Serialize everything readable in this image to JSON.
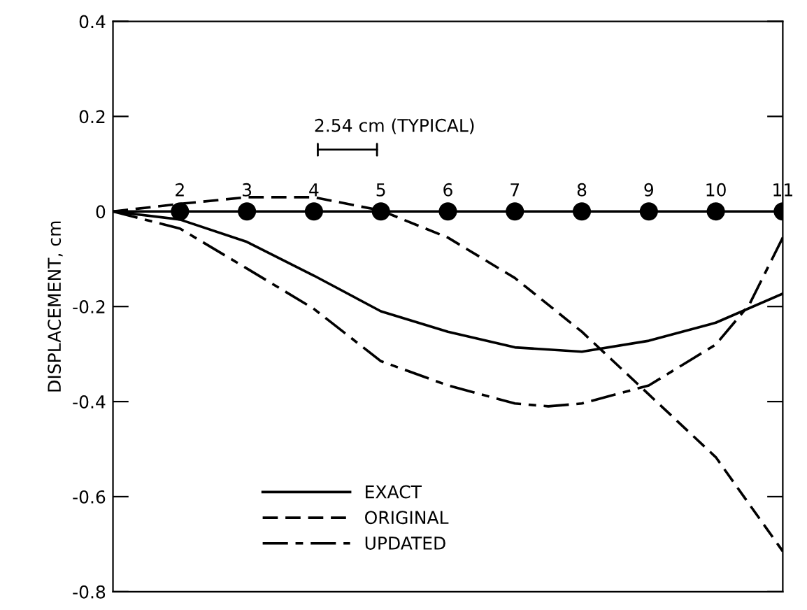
{
  "chart_data": {
    "type": "line",
    "ylabel": "DISPLACEMENT, cm",
    "xlim": [
      1,
      11
    ],
    "ylim": [
      -0.8,
      0.4
    ],
    "xticks": [
      2,
      3,
      4,
      5,
      6,
      7,
      8,
      9,
      10,
      11
    ],
    "yticks": [
      {
        "value": 0.4,
        "label": "0.4"
      },
      {
        "value": 0.2,
        "label": "0.2"
      },
      {
        "value": 0,
        "label": "0"
      },
      {
        "value": -0.2,
        "label": "-0.2"
      },
      {
        "value": -0.4,
        "label": "-0.4"
      },
      {
        "value": -0.6,
        "label": "-0.6"
      },
      {
        "value": -0.8,
        "label": "-0.8"
      }
    ],
    "grid": false,
    "legend": "bottom left",
    "series": [
      {
        "name": "EXACT",
        "line_style": "solid",
        "color": "#000000",
        "x": [
          1,
          2,
          3,
          4,
          5,
          6,
          7,
          8,
          9,
          10,
          11
        ],
        "values": [
          0,
          -0.017,
          -0.064,
          -0.135,
          -0.21,
          -0.253,
          -0.286,
          -0.295,
          -0.272,
          -0.234,
          -0.173
        ]
      },
      {
        "name": "ORIGINAL",
        "line_style": "dashed",
        "color": "#000000",
        "x": [
          1,
          2,
          3,
          4,
          5,
          6,
          7,
          8,
          9,
          10,
          11
        ],
        "values": [
          0,
          0.016,
          0.03,
          0.03,
          0.002,
          -0.055,
          -0.14,
          -0.253,
          -0.385,
          -0.517,
          -0.715
        ]
      },
      {
        "name": "UPDATED",
        "line_style": "dashdot",
        "color": "#000000",
        "x": [
          1,
          2,
          3,
          4,
          5,
          6,
          7,
          7.5,
          8,
          9,
          10,
          10.5,
          11
        ],
        "values": [
          0,
          -0.036,
          -0.12,
          -0.205,
          -0.315,
          -0.366,
          -0.404,
          -0.41,
          -0.404,
          -0.366,
          -0.28,
          -0.196,
          -0.055
        ]
      },
      {
        "type": "line",
        "line_style": "solid",
        "color": "#000000",
        "x": [
          1,
          11
        ],
        "values": [
          0,
          0
        ]
      },
      {
        "type": "scatter",
        "marker": "circle",
        "color": "#000000",
        "x": [
          2,
          3,
          4,
          5,
          6,
          7,
          8,
          9,
          10,
          11
        ],
        "values": [
          0,
          0,
          0,
          0,
          0,
          0,
          0,
          0,
          0,
          0
        ]
      }
    ],
    "annotations": [
      "2.54 cm (TYPICAL)"
    ]
  }
}
